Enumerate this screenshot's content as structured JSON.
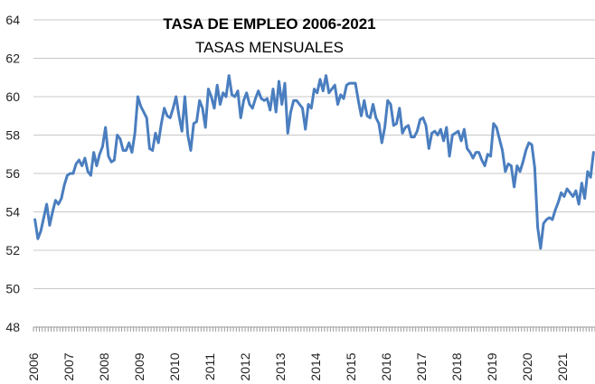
{
  "chart_data": {
    "type": "line",
    "title": "TASA DE EMPLEO 2006-2021",
    "subtitle": "TASAS MENSUALES",
    "xlabel": "",
    "ylabel": "",
    "ylim": [
      48,
      64
    ],
    "yticks": [
      48,
      50,
      52,
      54,
      56,
      58,
      60,
      62,
      64
    ],
    "xtick_labels": [
      "2006",
      "2007",
      "2008",
      "2009",
      "2010",
      "2011",
      "2012",
      "2013",
      "2014",
      "2015",
      "2016",
      "2017",
      "2018",
      "2019",
      "2020",
      "2021"
    ],
    "grid": true,
    "legend": "none",
    "line_color": "#4a7ebf",
    "grid_color": "#c8c8c8",
    "series": [
      {
        "name": "Tasa de empleo",
        "start_year": 2006,
        "values": [
          53.6,
          52.6,
          53.0,
          53.7,
          54.4,
          53.3,
          54.0,
          54.6,
          54.4,
          54.7,
          55.4,
          55.9,
          56.0,
          56.0,
          56.5,
          56.7,
          56.4,
          56.8,
          56.1,
          55.9,
          57.1,
          56.4,
          57.0,
          57.4,
          58.4,
          56.9,
          56.6,
          56.7,
          58.0,
          57.8,
          57.2,
          57.2,
          57.6,
          57.1,
          58.1,
          60.0,
          59.5,
          59.2,
          58.9,
          57.3,
          57.2,
          58.1,
          57.6,
          58.6,
          59.4,
          59.0,
          58.9,
          59.4,
          60.0,
          59.0,
          58.2,
          60.0,
          58.0,
          57.2,
          58.6,
          58.7,
          59.8,
          59.4,
          58.4,
          60.4,
          60.0,
          59.4,
          60.6,
          59.6,
          60.2,
          60.0,
          61.1,
          60.1,
          60.0,
          60.3,
          58.9,
          59.8,
          60.2,
          59.6,
          59.4,
          59.9,
          60.3,
          59.9,
          59.8,
          59.9,
          59.3,
          60.4,
          59.2,
          60.8,
          59.6,
          60.7,
          58.1,
          59.2,
          59.8,
          59.8,
          59.6,
          59.4,
          58.3,
          59.6,
          59.4,
          60.4,
          60.2,
          60.9,
          60.3,
          61.1,
          60.2,
          60.4,
          60.6,
          59.6,
          60.1,
          59.9,
          60.6,
          60.7,
          60.7,
          60.7,
          59.8,
          59.0,
          59.8,
          59.0,
          58.9,
          59.6,
          58.9,
          58.6,
          57.6,
          58.4,
          59.8,
          59.6,
          58.5,
          58.6,
          59.4,
          58.1,
          58.4,
          58.5,
          57.9,
          57.9,
          58.2,
          58.8,
          58.9,
          58.5,
          57.3,
          58.1,
          58.2,
          58.0,
          58.3,
          57.7,
          58.4,
          56.9,
          58.0,
          58.1,
          58.2,
          57.7,
          58.3,
          57.3,
          57.1,
          56.8,
          57.1,
          57.1,
          56.7,
          56.4,
          57.0,
          56.9,
          58.6,
          58.4,
          57.8,
          57.2,
          56.1,
          56.5,
          56.4,
          55.3,
          56.4,
          56.1,
          56.6,
          57.2,
          57.6,
          57.5,
          56.3,
          53.2,
          52.1,
          53.4,
          53.6,
          53.7,
          53.6,
          54.1,
          54.5,
          55.0,
          54.8,
          55.2,
          55.0,
          54.8,
          55.1,
          54.4,
          55.5,
          54.7,
          56.1,
          55.8,
          57.1
        ]
      }
    ]
  }
}
